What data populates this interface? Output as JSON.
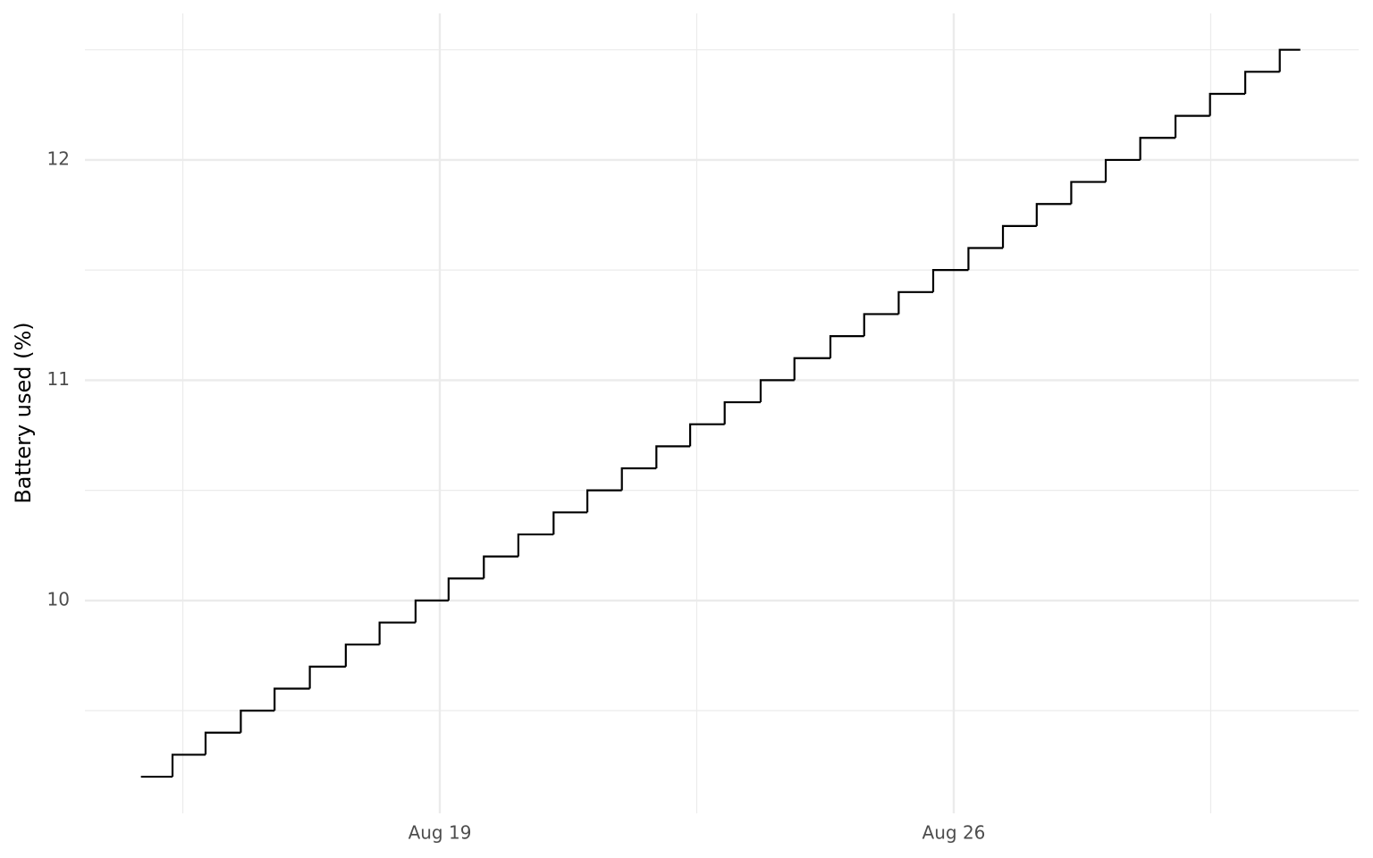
{
  "chart_data": {
    "type": "step",
    "y_label": "Battery used (%)",
    "x": [
      14.93,
      15.36,
      15.81,
      16.29,
      16.75,
      17.23,
      17.72,
      18.18,
      18.67,
      19.12,
      19.6,
      20.07,
      20.55,
      21.01,
      21.48,
      21.95,
      22.41,
      22.88,
      23.37,
      23.83,
      24.32,
      24.78,
      25.25,
      25.72,
      26.2,
      26.67,
      27.13,
      27.6,
      28.07,
      28.54,
      29.02,
      29.49,
      29.97,
      30.44,
      30.72
    ],
    "values": [
      9.2,
      9.3,
      9.4,
      9.5,
      9.6,
      9.7,
      9.8,
      9.9,
      10.0,
      10.1,
      10.2,
      10.3,
      10.4,
      10.5,
      10.6,
      10.7,
      10.8,
      10.9,
      11.0,
      11.1,
      11.2,
      11.3,
      11.4,
      11.5,
      11.6,
      11.7,
      11.8,
      11.9,
      12.0,
      12.1,
      12.2,
      12.3,
      12.4,
      12.5,
      12.5
    ],
    "color": "#000000",
    "xlim": [
      14.167,
      31.515
    ],
    "xticks": [
      {
        "value": 19,
        "label": "Aug 19"
      },
      {
        "value": 26,
        "label": "Aug 26"
      }
    ],
    "x_minor_ticks": [
      15.5,
      22.5,
      29.5
    ],
    "ylim": [
      9.034,
      12.665
    ],
    "yticks": [
      10,
      11,
      12
    ],
    "y_minor_ticks": [
      9.5,
      10.5,
      11.5,
      12.5
    ],
    "grid": true
  }
}
